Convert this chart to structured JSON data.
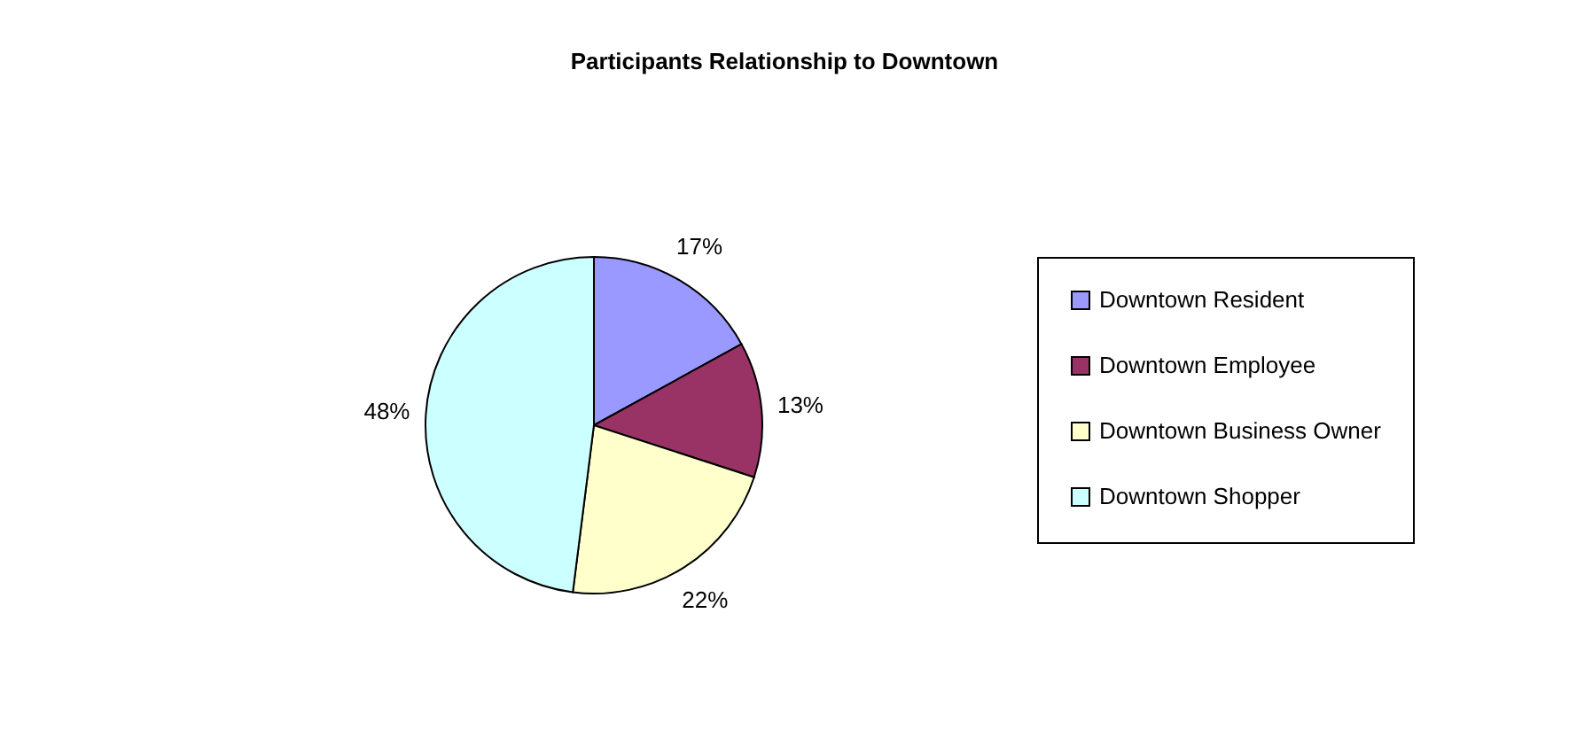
{
  "chart_data": {
    "type": "pie",
    "title": "Participants Relationship to Downtown",
    "categories": [
      "Downtown Resident",
      "Downtown Employee",
      "Downtown Business Owner",
      "Downtown Shopper"
    ],
    "values": [
      17,
      13,
      22,
      48
    ],
    "value_labels": [
      "17%",
      "13%",
      "22%",
      "48%"
    ],
    "colors": [
      "#9999ff",
      "#993366",
      "#ffffcc",
      "#ccffff"
    ],
    "legend": "right"
  }
}
